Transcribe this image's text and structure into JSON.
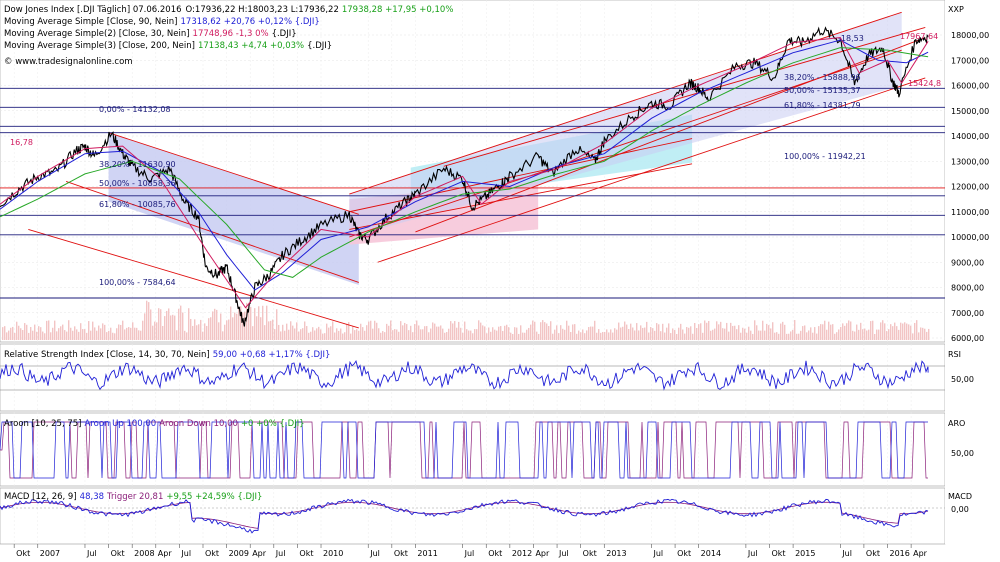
{
  "colors": {
    "price": "#000000",
    "ma90": "#1f1fd6",
    "ma30": "#d01b5f",
    "ma200": "#28a828",
    "rsi": "#1f1fd6",
    "aroon_up": "#1f1fd6",
    "aroon_down": "#8b1f7a",
    "macd": "#1f1fd6",
    "macd_trigger": "#8b1f7a",
    "channel": "#e01010",
    "fib": "#1a1a7a",
    "volume": "#f2c4c4",
    "shade_blue": "#c8ccf2",
    "shade_cyan": "#b9ecf4",
    "shade_pink": "#f6c7d9"
  },
  "header": {
    "line1": {
      "name": "Dow Jones Index [.DJI Täglich] 07.06.2016",
      "quote": "O:17936,22 H:18003,23 L:17936,22",
      "change": "17938,28 +17,95 +0,10%"
    },
    "line2": {
      "name": "Moving Average Simple [Close, 90, Nein]",
      "value": "17318,62 +20,76 +0,12% {.DJI}"
    },
    "line3": {
      "name": "Moving Average Simple(2) [Close, 30, Nein]",
      "value": "17748,96 -1,3 0%",
      "tail": "{.DJI}"
    },
    "line4": {
      "name": "Moving Average Simple(3) [Close, 200, Nein]",
      "value": "17138,43 +4,74 +0,03%",
      "tail": "{.DJI}"
    },
    "watermark": "© www.tradesignalonline.com"
  },
  "panels": {
    "price_label": "XXP",
    "rsi": {
      "title": "Relative Strength Index [Close, 14, 30, 70, Nein]",
      "value": "59,00 +0,68 +1,17% {.DJI}",
      "label": "RSI",
      "tick": "50,00"
    },
    "aroon": {
      "title": "Aroon [10, 25, 75]",
      "up": "Aroon Up 100,00",
      "down": "Aroon Down 10,00",
      "rest": "+0 +0% {.DJI}",
      "label": "ARO",
      "tick": "50,00"
    },
    "macd": {
      "title": "MACD [12, 26, 9]",
      "value": "48,38",
      "trigger": "Trigger 20,81",
      "rest": "+9,55 +24,59% {.DJI}",
      "label": "MACD",
      "tick": "0,00"
    }
  },
  "fib_labels": {
    "a1": "0,00% - 14132,08",
    "a2": "38,20% - 11630,90",
    "a3": "50,00% - 10858,36",
    "a4": "61,80% - 10085,76",
    "a5": "100,00% - 7584,64",
    "b1": "38,20% - 15888,96",
    "b2": "50,00% - 15135,37",
    "b3": "61,80% - 14381,79",
    "b4": "100,00% - 11942,21",
    "c1": "17967,64",
    "c2": "15424,8",
    "c3": "16,78",
    "c4": "-18,53"
  },
  "chart_data": {
    "type": "line",
    "title": "Dow Jones Index [.DJI Täglich] 07.06.2016",
    "y_ticks": [
      6000,
      7000,
      8000,
      9000,
      10000,
      11000,
      12000,
      13000,
      14000,
      15000,
      16000,
      17000,
      18000
    ],
    "y_tick_labels": [
      "6000,00",
      "7000,00",
      "8000,00",
      "9000,00",
      "10000,00",
      "11000,00",
      "12000,00",
      "13000,00",
      "14000,00",
      "15000,00",
      "16000,00",
      "17000,00",
      "18000,00"
    ],
    "x_labels": [
      "Okt",
      "2007",
      "Jul",
      "Okt",
      "2008",
      "Apr",
      "Jul",
      "Okt",
      "2009",
      "Apr",
      "Jul",
      "Okt",
      "2010",
      "Jul",
      "Okt",
      "2011",
      "Jul",
      "Okt",
      "2012",
      "Apr",
      "Jul",
      "Okt",
      "2013",
      "Jul",
      "Okt",
      "2014",
      "Jul",
      "Okt",
      "2015",
      "Jul",
      "Okt",
      "2016",
      "Apr"
    ],
    "x_label_t": [
      2006.75,
      2007.0,
      2007.5,
      2007.75,
      2008.0,
      2008.25,
      2008.5,
      2008.75,
      2009.0,
      2009.25,
      2009.5,
      2009.75,
      2010.0,
      2010.5,
      2010.75,
      2011.0,
      2011.5,
      2011.75,
      2012.0,
      2012.25,
      2012.5,
      2012.75,
      2013.0,
      2013.5,
      2013.75,
      2014.0,
      2014.5,
      2014.75,
      2015.0,
      2015.5,
      2015.75,
      2016.0,
      2016.25
    ],
    "x_range": [
      2006.6,
      2016.45
    ],
    "series": [
      {
        "name": "Dow Jones Index [.DJI Täglich]",
        "points": [
          [
            2006.6,
            11300
          ],
          [
            2006.8,
            11900
          ],
          [
            2007.0,
            12400
          ],
          [
            2007.2,
            12600
          ],
          [
            2007.4,
            13400
          ],
          [
            2007.5,
            13600
          ],
          [
            2007.6,
            13200
          ],
          [
            2007.78,
            14100
          ],
          [
            2007.9,
            13300
          ],
          [
            2008.0,
            12800
          ],
          [
            2008.2,
            12300
          ],
          [
            2008.4,
            12700
          ],
          [
            2008.55,
            11400
          ],
          [
            2008.7,
            10800
          ],
          [
            2008.78,
            8800
          ],
          [
            2008.9,
            8500
          ],
          [
            2009.0,
            8800
          ],
          [
            2009.1,
            7600
          ],
          [
            2009.18,
            6550
          ],
          [
            2009.3,
            8000
          ],
          [
            2009.45,
            8500
          ],
          [
            2009.6,
            9300
          ],
          [
            2009.8,
            9900
          ],
          [
            2010.0,
            10450
          ],
          [
            2010.3,
            10900
          ],
          [
            2010.4,
            10100
          ],
          [
            2010.5,
            9900
          ],
          [
            2010.7,
            10800
          ],
          [
            2010.9,
            11400
          ],
          [
            2011.0,
            11700
          ],
          [
            2011.3,
            12700
          ],
          [
            2011.5,
            12300
          ],
          [
            2011.6,
            11200
          ],
          [
            2011.75,
            11600
          ],
          [
            2011.9,
            12100
          ],
          [
            2012.0,
            12400
          ],
          [
            2012.3,
            13200
          ],
          [
            2012.45,
            12500
          ],
          [
            2012.7,
            13500
          ],
          [
            2012.9,
            13000
          ],
          [
            2013.0,
            13800
          ],
          [
            2013.3,
            14800
          ],
          [
            2013.5,
            15300
          ],
          [
            2013.7,
            15200
          ],
          [
            2013.9,
            16100
          ],
          [
            2014.0,
            15900
          ],
          [
            2014.1,
            15500
          ],
          [
            2014.4,
            16800
          ],
          [
            2014.6,
            16900
          ],
          [
            2014.8,
            16300
          ],
          [
            2014.95,
            17800
          ],
          [
            2015.1,
            17700
          ],
          [
            2015.3,
            18200
          ],
          [
            2015.5,
            17800
          ],
          [
            2015.65,
            16100
          ],
          [
            2015.8,
            17200
          ],
          [
            2015.95,
            17500
          ],
          [
            2016.05,
            16200
          ],
          [
            2016.12,
            15700
          ],
          [
            2016.3,
            17800
          ],
          [
            2016.43,
            17938
          ]
        ]
      },
      {
        "name": "Moving Average Simple [Close, 90, Nein]",
        "points": [
          [
            2006.6,
            11100
          ],
          [
            2007.0,
            12200
          ],
          [
            2007.5,
            13300
          ],
          [
            2007.9,
            13400
          ],
          [
            2008.3,
            12600
          ],
          [
            2008.7,
            11000
          ],
          [
            2009.0,
            9300
          ],
          [
            2009.3,
            7900
          ],
          [
            2009.6,
            8600
          ],
          [
            2010.0,
            9900
          ],
          [
            2010.5,
            10400
          ],
          [
            2011.0,
            11400
          ],
          [
            2011.5,
            12200
          ],
          [
            2012.0,
            12000
          ],
          [
            2012.5,
            12800
          ],
          [
            2013.0,
            13300
          ],
          [
            2013.5,
            14700
          ],
          [
            2014.0,
            15700
          ],
          [
            2014.5,
            16500
          ],
          [
            2015.0,
            17300
          ],
          [
            2015.5,
            17800
          ],
          [
            2015.9,
            17000
          ],
          [
            2016.2,
            16900
          ],
          [
            2016.43,
            17318
          ]
        ]
      },
      {
        "name": "Moving Average Simple(2) [Close, 30, Nein]",
        "points": [
          [
            2006.6,
            11300
          ],
          [
            2007.0,
            12400
          ],
          [
            2007.5,
            13500
          ],
          [
            2007.9,
            13600
          ],
          [
            2008.3,
            12300
          ],
          [
            2008.8,
            9400
          ],
          [
            2009.2,
            7200
          ],
          [
            2009.5,
            8500
          ],
          [
            2010.0,
            10300
          ],
          [
            2010.5,
            10000
          ],
          [
            2011.0,
            11600
          ],
          [
            2011.5,
            12400
          ],
          [
            2011.7,
            11300
          ],
          [
            2012.0,
            12200
          ],
          [
            2012.5,
            12700
          ],
          [
            2013.0,
            13700
          ],
          [
            2013.5,
            15100
          ],
          [
            2014.0,
            16000
          ],
          [
            2014.5,
            16800
          ],
          [
            2015.0,
            17700
          ],
          [
            2015.5,
            17900
          ],
          [
            2015.7,
            16500
          ],
          [
            2016.0,
            17000
          ],
          [
            2016.15,
            16100
          ],
          [
            2016.43,
            17749
          ]
        ]
      },
      {
        "name": "Moving Average Simple(3) [Close, 200, Nein]",
        "points": [
          [
            2006.6,
            10800
          ],
          [
            2007.0,
            11500
          ],
          [
            2007.5,
            12500
          ],
          [
            2008.0,
            13000
          ],
          [
            2008.5,
            12300
          ],
          [
            2009.0,
            10500
          ],
          [
            2009.4,
            8700
          ],
          [
            2009.7,
            8400
          ],
          [
            2010.0,
            9200
          ],
          [
            2010.5,
            10200
          ],
          [
            2011.0,
            11000
          ],
          [
            2011.5,
            11700
          ],
          [
            2012.0,
            11900
          ],
          [
            2012.5,
            12500
          ],
          [
            2013.0,
            13000
          ],
          [
            2013.5,
            14200
          ],
          [
            2014.0,
            15200
          ],
          [
            2014.5,
            16100
          ],
          [
            2015.0,
            16900
          ],
          [
            2015.5,
            17500
          ],
          [
            2016.0,
            17400
          ],
          [
            2016.43,
            17138
          ]
        ]
      }
    ],
    "fib_levels": [
      {
        "label": "0,00% - 14132,08",
        "y": 14132.08
      },
      {
        "label": "38,20% - 11630,90",
        "y": 11630.9
      },
      {
        "label": "50,00% - 10858,36",
        "y": 10858.36
      },
      {
        "label": "61,80% - 10085,76",
        "y": 10085.76
      },
      {
        "label": "100,00% - 7584,64",
        "y": 7584.64
      },
      {
        "label": "38,20% - 15888,96",
        "y": 15888.96
      },
      {
        "label": "50,00% - 15135,37",
        "y": 15135.37
      },
      {
        "label": "61,80% - 14381,79",
        "y": 14381.79
      },
      {
        "label": "100,00% - 11942,21",
        "y": 11942.21
      }
    ],
    "rsi_level": 59.0,
    "aroon_up": 100.0,
    "aroon_down": 10.0,
    "macd": 48.38,
    "macd_trigger": 20.81
  }
}
